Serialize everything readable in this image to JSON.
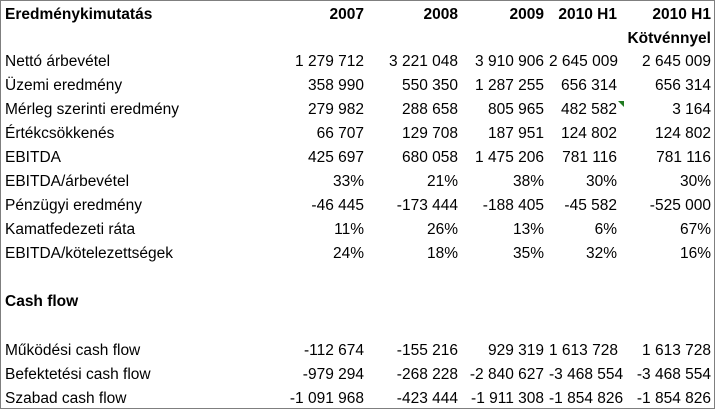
{
  "header": {
    "title": "Eredménykimutatás",
    "columns": [
      "2007",
      "2008",
      "2009",
      "2010 H1",
      "2010 H1"
    ],
    "subheader": "Kötvénnyel"
  },
  "income_rows": [
    {
      "label": "Nettó árbevétel",
      "values": [
        "1 279 712",
        "3 221 048",
        "3 910 906",
        "2 645 009",
        "2 645 009"
      ]
    },
    {
      "label": "Üzemi eredmény",
      "values": [
        "358 990",
        "550 350",
        "1 287 255",
        "656 314",
        "656 314"
      ]
    },
    {
      "label": "Mérleg szerinti eredmény",
      "values": [
        "279 982",
        "288 658",
        "805 965",
        "482 582",
        "3 164"
      ]
    },
    {
      "label": "Értékcsökkenés",
      "values": [
        "66 707",
        "129 708",
        "187 951",
        "124 802",
        "124 802"
      ]
    },
    {
      "label": "EBITDA",
      "values": [
        "425 697",
        "680 058",
        "1 475 206",
        "781 116",
        "781 116"
      ]
    },
    {
      "label": "EBITDA/árbevétel",
      "values": [
        "33%",
        "21%",
        "38%",
        "30%",
        "30%"
      ]
    },
    {
      "label": "Pénzügyi eredmény",
      "values": [
        "-46 445",
        "-173 444",
        "-188 405",
        "-45 582",
        "-525 000"
      ]
    },
    {
      "label": "Kamatfedezeti ráta",
      "values": [
        "11%",
        "26%",
        "13%",
        "6%",
        "67%"
      ]
    },
    {
      "label": "EBITDA/kötelezettségek",
      "values": [
        "24%",
        "18%",
        "35%",
        "32%",
        "16%"
      ]
    }
  ],
  "cashflow": {
    "title": "Cash flow",
    "rows": [
      {
        "label": "Működési cash flow",
        "values": [
          "-112 674",
          "-155 216",
          "929 319",
          "1 613 728",
          "1 613 728"
        ]
      },
      {
        "label": "Befektetési cash flow",
        "values": [
          "-979 294",
          "-268 228",
          "-2 840 627",
          "-3 468 554",
          "-3 468 554"
        ]
      },
      {
        "label": "Szabad cash flow",
        "values": [
          "-1 091 968",
          "-423 444",
          "-1 911 308",
          "-1 854 826",
          "-1 854 826"
        ]
      }
    ]
  },
  "comment_marker_color": "#1f7a1f"
}
